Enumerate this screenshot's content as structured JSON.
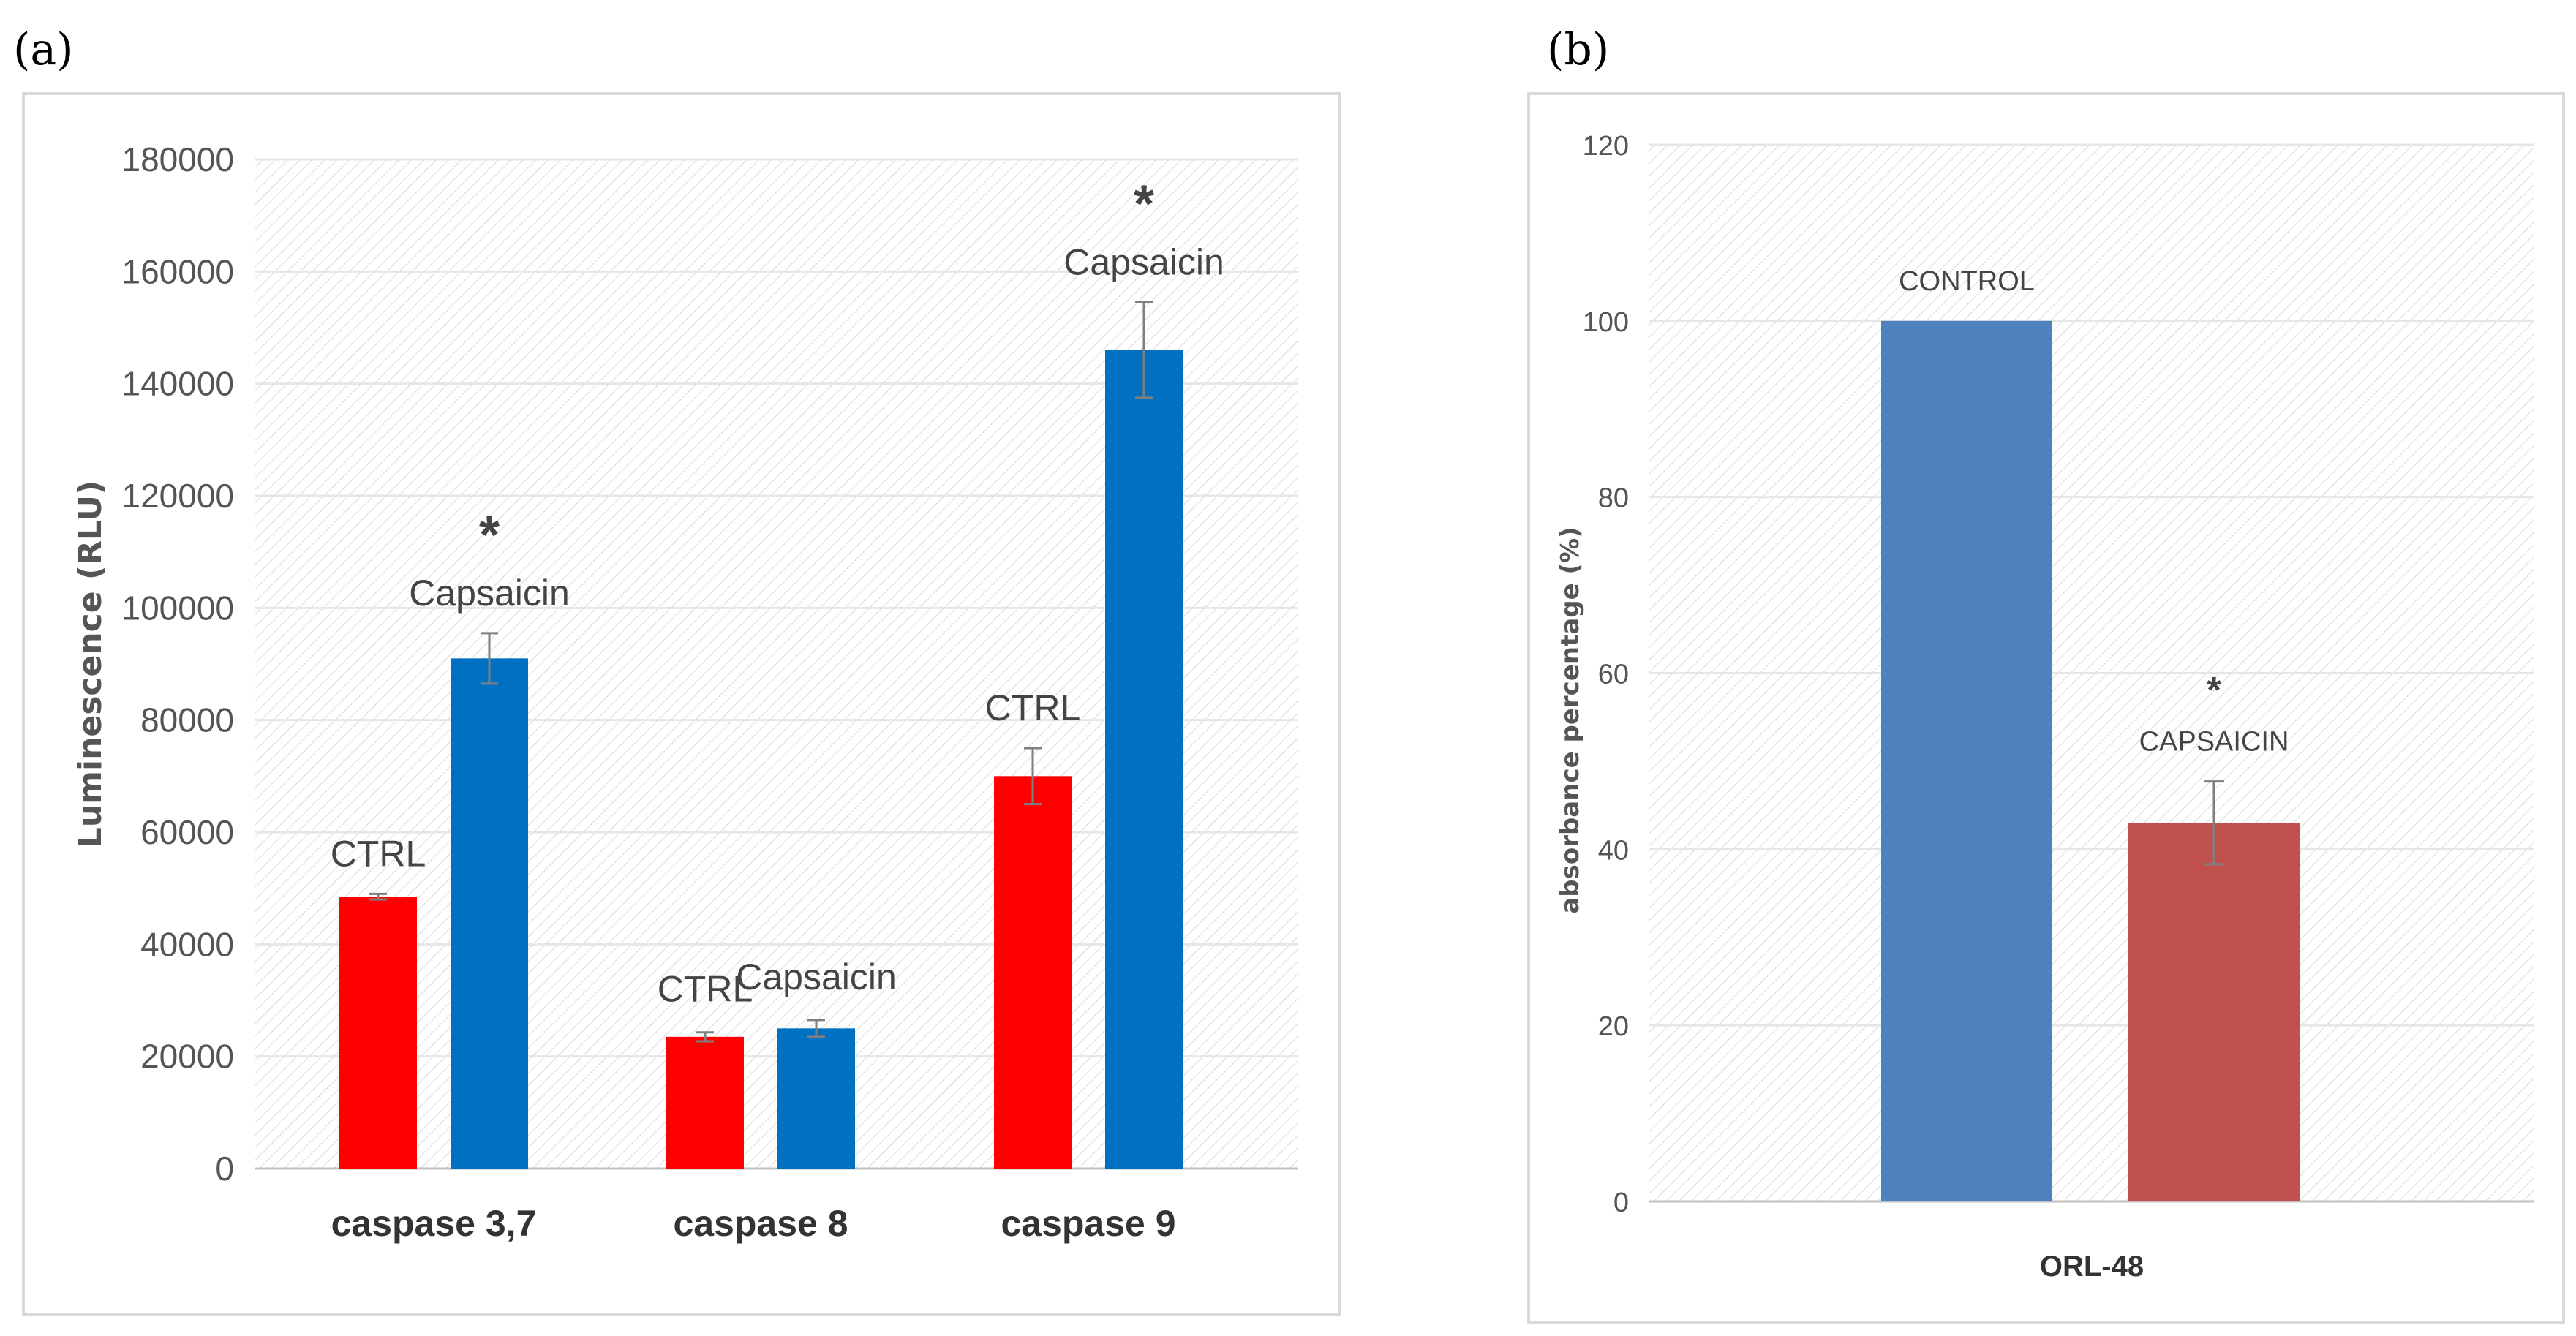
{
  "panel_labels": {
    "a": "(a)",
    "b": "(b)"
  },
  "colors": {
    "ctrl_red": "#ff0000",
    "caps_blue": "#0070c0",
    "control_blue": "#4f81bd",
    "caps_red": "#c0504d"
  },
  "chart_data": [
    {
      "type": "bar",
      "title": "",
      "xlabel": "",
      "ylabel": "Luminescence (RLU)",
      "ylim": [
        0,
        180000
      ],
      "yticks": [
        "0",
        "20000",
        "40000",
        "60000",
        "80000",
        "100000",
        "120000",
        "140000",
        "160000",
        "180000"
      ],
      "categories": [
        "caspase 3,7",
        "caspase 8",
        "caspase 9"
      ],
      "series": [
        {
          "name": "CTRL",
          "values": [
            48500,
            23500,
            70000
          ],
          "errors": [
            500,
            800,
            5000
          ],
          "labels": [
            "CTRL",
            "CTRL",
            "CTRL"
          ]
        },
        {
          "name": "Capsaicin",
          "values": [
            91000,
            25000,
            146000
          ],
          "errors": [
            4500,
            1500,
            8500
          ],
          "labels": [
            "Capsaicin",
            "Capsaicin",
            "Capsaicin"
          ]
        }
      ],
      "annotations": [
        {
          "category": "caspase 3,7",
          "series": "Capsaicin",
          "text": "*"
        },
        {
          "category": "caspase 9",
          "series": "Capsaicin",
          "text": "*"
        }
      ]
    },
    {
      "type": "bar",
      "title": "",
      "xlabel": "",
      "ylabel": "absorbance percentage (%)",
      "ylim": [
        0,
        120
      ],
      "yticks": [
        "0",
        "20",
        "40",
        "60",
        "80",
        "100",
        "120"
      ],
      "categories": [
        "ORL-48"
      ],
      "series": [
        {
          "name": "CONTROL",
          "values": [
            100
          ],
          "errors": [
            0
          ],
          "labels": [
            "CONTROL"
          ]
        },
        {
          "name": "CAPSAICIN",
          "values": [
            43
          ],
          "errors": [
            4.7
          ],
          "labels": [
            "CAPSAICIN"
          ]
        }
      ],
      "annotations": [
        {
          "category": "ORL-48",
          "series": "CAPSAICIN",
          "text": "*"
        }
      ]
    }
  ]
}
